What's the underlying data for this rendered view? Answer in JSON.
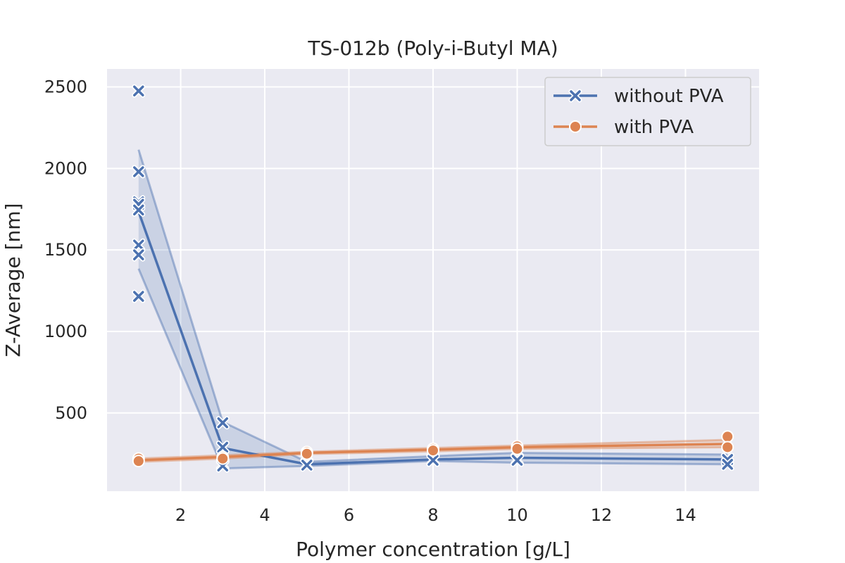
{
  "chart_data": {
    "type": "line",
    "title": "TS-012b (Poly-i-Butyl MA)",
    "xlabel": "Polymer concentration [g/L]",
    "ylabel": "Z-Average [nm]",
    "xlim": [
      0.25,
      15.75
    ],
    "ylim": [
      20,
      2610
    ],
    "xticks": [
      2,
      4,
      6,
      8,
      10,
      12,
      14
    ],
    "yticks": [
      500,
      1000,
      1500,
      2000,
      2500
    ],
    "grid": true,
    "legend_position": "top-right",
    "series": [
      {
        "name": "without PVA",
        "color": "#4c72b0",
        "marker": "x",
        "x": [
          1,
          3,
          5,
          8,
          10,
          15
        ],
        "y": [
          1735,
          285,
          185,
          215,
          225,
          215
        ],
        "ci_lower": [
          1385,
          160,
          175,
          205,
          195,
          185
        ],
        "ci_upper": [
          2115,
          445,
          200,
          235,
          255,
          245
        ],
        "points": [
          {
            "x": 1,
            "y": 2475
          },
          {
            "x": 1,
            "y": 1980
          },
          {
            "x": 1,
            "y": 1795
          },
          {
            "x": 1,
            "y": 1780
          },
          {
            "x": 1,
            "y": 1745
          },
          {
            "x": 1,
            "y": 1530
          },
          {
            "x": 1,
            "y": 1470
          },
          {
            "x": 1,
            "y": 1215
          },
          {
            "x": 3,
            "y": 440
          },
          {
            "x": 3,
            "y": 290
          },
          {
            "x": 3,
            "y": 185
          },
          {
            "x": 3,
            "y": 175
          },
          {
            "x": 5,
            "y": 185
          },
          {
            "x": 5,
            "y": 180
          },
          {
            "x": 8,
            "y": 215
          },
          {
            "x": 8,
            "y": 210
          },
          {
            "x": 10,
            "y": 215
          },
          {
            "x": 10,
            "y": 210
          },
          {
            "x": 15,
            "y": 215
          },
          {
            "x": 15,
            "y": 185
          }
        ]
      },
      {
        "name": "with PVA",
        "color": "#dd8452",
        "marker": "o",
        "x": [
          1,
          3,
          5,
          8,
          10,
          15
        ],
        "y": [
          210,
          230,
          255,
          275,
          290,
          310
        ],
        "ci_lower": [
          200,
          220,
          248,
          265,
          280,
          290
        ],
        "ci_upper": [
          220,
          240,
          262,
          285,
          300,
          335
        ],
        "points": [
          {
            "x": 1,
            "y": 220
          },
          {
            "x": 1,
            "y": 205
          },
          {
            "x": 3,
            "y": 230
          },
          {
            "x": 3,
            "y": 220
          },
          {
            "x": 5,
            "y": 260
          },
          {
            "x": 5,
            "y": 250
          },
          {
            "x": 8,
            "y": 280
          },
          {
            "x": 8,
            "y": 270
          },
          {
            "x": 10,
            "y": 295
          },
          {
            "x": 10,
            "y": 280
          },
          {
            "x": 15,
            "y": 355
          },
          {
            "x": 15,
            "y": 290
          }
        ]
      }
    ]
  }
}
